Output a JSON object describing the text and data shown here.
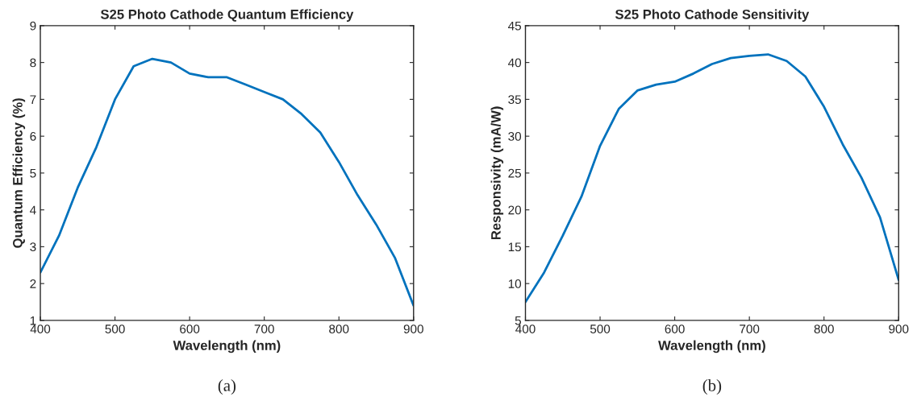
{
  "chart_data": [
    {
      "type": "line",
      "title": "S25 Photo Cathode Quantum Efficiency",
      "xlabel": "Wavelength (nm)",
      "ylabel": "Quantum Efficiency (%)",
      "xlim": [
        400,
        900
      ],
      "ylim": [
        1,
        9
      ],
      "xticks": [
        400,
        500,
        600,
        700,
        800,
        900
      ],
      "yticks": [
        1,
        2,
        3,
        4,
        5,
        6,
        7,
        8,
        9
      ],
      "grid": false,
      "legend": false,
      "annotations": [
        "(a)"
      ],
      "x": [
        400,
        425,
        450,
        475,
        500,
        525,
        550,
        575,
        600,
        625,
        650,
        675,
        700,
        725,
        750,
        775,
        800,
        825,
        850,
        875,
        900
      ],
      "series": [
        {
          "color": "#0072bd",
          "values": [
            2.3,
            3.3,
            4.6,
            5.7,
            7.0,
            7.9,
            8.1,
            8.0,
            7.7,
            7.6,
            7.6,
            7.4,
            7.2,
            7.0,
            6.6,
            6.1,
            5.3,
            4.4,
            3.6,
            2.7,
            1.4
          ]
        }
      ]
    },
    {
      "type": "line",
      "title": "S25 Photo Cathode Sensitivity",
      "xlabel": "Wavelength (nm)",
      "ylabel": "Responsivity (mA/W)",
      "xlim": [
        400,
        900
      ],
      "ylim": [
        5,
        45
      ],
      "xticks": [
        400,
        500,
        600,
        700,
        800,
        900
      ],
      "yticks": [
        5,
        10,
        15,
        20,
        25,
        30,
        35,
        40,
        45
      ],
      "grid": false,
      "legend": false,
      "annotations": [
        "(b)"
      ],
      "x": [
        400,
        425,
        450,
        475,
        500,
        525,
        550,
        575,
        600,
        625,
        650,
        675,
        700,
        725,
        750,
        775,
        800,
        825,
        850,
        875,
        900
      ],
      "series": [
        {
          "color": "#0072bd",
          "values": [
            7.5,
            11.5,
            16.5,
            21.8,
            28.7,
            33.7,
            36.2,
            37.0,
            37.4,
            38.5,
            39.8,
            40.6,
            40.9,
            41.1,
            40.2,
            38.1,
            34.0,
            28.9,
            24.4,
            19.0,
            10.5
          ]
        }
      ]
    }
  ]
}
